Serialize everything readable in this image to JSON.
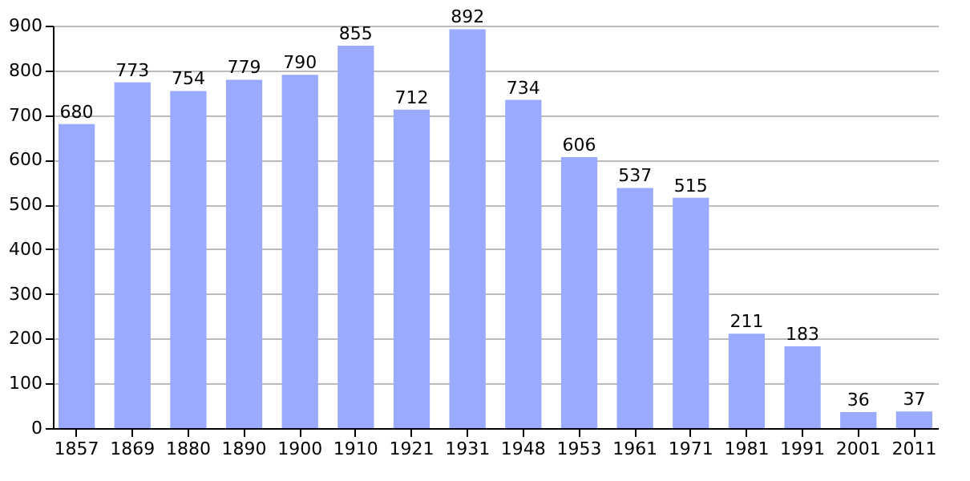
{
  "chart_data": {
    "type": "bar",
    "categories": [
      "1857",
      "1869",
      "1880",
      "1890",
      "1900",
      "1910",
      "1921",
      "1931",
      "1948",
      "1953",
      "1961",
      "1971",
      "1981",
      "1991",
      "2001",
      "2011"
    ],
    "values": [
      680,
      773,
      754,
      779,
      790,
      855,
      712,
      892,
      734,
      606,
      537,
      515,
      211,
      183,
      36,
      37
    ],
    "color": "#99aaff",
    "ylim": [
      0,
      900
    ],
    "yticks": [
      0,
      100,
      200,
      300,
      400,
      500,
      600,
      700,
      800,
      900
    ],
    "grid": "y",
    "data_labels": true
  }
}
